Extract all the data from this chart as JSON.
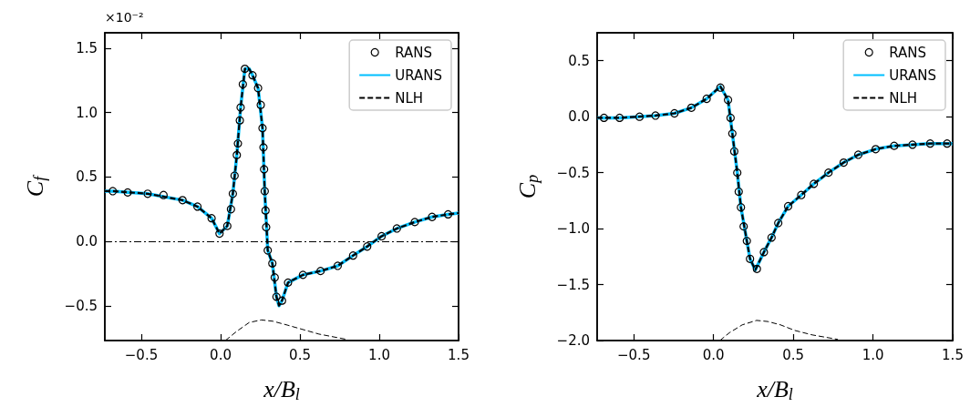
{
  "chart_data": [
    {
      "type": "line",
      "xlabel": "x/B$_{l}$",
      "ylabel": "C$_{f}$",
      "annotations": [
        "×10⁻²"
      ],
      "xlim": [
        -0.73,
        1.5
      ],
      "ylim": [
        -0.77,
        1.62
      ],
      "xticks": [
        {
          "value": -0.5,
          "label": "−0.5"
        },
        {
          "value": 0,
          "label": "0.0"
        },
        {
          "value": 0.5,
          "label": "0.5"
        },
        {
          "value": 1,
          "label": "1.0"
        },
        {
          "value": 1.5,
          "label": "1.5"
        }
      ],
      "yticks": [
        {
          "value": -0.5,
          "label": "−0.5"
        },
        {
          "value": 0,
          "label": "0.0"
        },
        {
          "value": 0.5,
          "label": "0.5"
        },
        {
          "value": 1,
          "label": "1.0"
        },
        {
          "value": 1.5,
          "label": "1.5"
        }
      ],
      "legend": "top right",
      "ref_lines": [
        {
          "axis": "y",
          "value": 0,
          "color": "#000000",
          "line_style": "dashdot"
        }
      ],
      "series": [
        {
          "name": "RANS",
          "type": "scatter",
          "marker": "circle",
          "color": "#000000",
          "x": [
            -0.68,
            -0.586,
            -0.46,
            -0.36,
            -0.24,
            -0.146,
            -0.057,
            -0.007,
            0.042,
            0.065,
            0.077,
            0.088,
            0.102,
            0.109,
            0.121,
            0.126,
            0.14,
            0.153,
            0.201,
            0.236,
            0.253,
            0.264,
            0.27,
            0.274,
            0.278,
            0.283,
            0.287,
            0.297,
            0.326,
            0.341,
            0.352,
            0.387,
            0.425,
            0.519,
            0.63,
            0.738,
            0.835,
            0.924,
            1.015,
            1.111,
            1.224,
            1.333,
            1.434
          ],
          "values": [
            0.39,
            0.38,
            0.37,
            0.36,
            0.32,
            0.27,
            0.18,
            0.06,
            0.12,
            0.25,
            0.37,
            0.51,
            0.67,
            0.76,
            0.94,
            1.04,
            1.22,
            1.34,
            1.29,
            1.19,
            1.06,
            0.88,
            0.73,
            0.56,
            0.39,
            0.24,
            0.11,
            -0.07,
            -0.17,
            -0.28,
            -0.43,
            -0.46,
            -0.32,
            -0.26,
            -0.23,
            -0.19,
            -0.11,
            -0.04,
            0.04,
            0.1,
            0.15,
            0.19,
            0.21
          ]
        },
        {
          "name": "URANS",
          "line_style": "solid",
          "color": "#00bfff",
          "x": [
            -0.73,
            -0.68,
            -0.46,
            -0.24,
            -0.146,
            -0.057,
            -0.007,
            0.042,
            0.077,
            0.102,
            0.126,
            0.153,
            0.18,
            0.201,
            0.236,
            0.264,
            0.278,
            0.297,
            0.326,
            0.352,
            0.368,
            0.387,
            0.425,
            0.519,
            0.63,
            0.738,
            0.835,
            0.924,
            1.015,
            1.111,
            1.224,
            1.333,
            1.434,
            1.5
          ],
          "values": [
            0.39,
            0.39,
            0.37,
            0.32,
            0.27,
            0.18,
            0.06,
            0.12,
            0.37,
            0.67,
            1.04,
            1.34,
            1.34,
            1.29,
            1.19,
            0.88,
            0.39,
            -0.07,
            -0.17,
            -0.43,
            -0.5,
            -0.46,
            -0.32,
            -0.26,
            -0.23,
            -0.19,
            -0.11,
            -0.04,
            0.04,
            0.1,
            0.15,
            0.19,
            0.21,
            0.22
          ]
        },
        {
          "name": "NLH",
          "line_style": "dashed",
          "color": "#000000",
          "x": [
            -0.73,
            -0.68,
            -0.46,
            -0.24,
            -0.146,
            -0.057,
            -0.007,
            0.042,
            0.077,
            0.102,
            0.126,
            0.153,
            0.18,
            0.201,
            0.236,
            0.264,
            0.278,
            0.297,
            0.326,
            0.352,
            0.368,
            0.387,
            0.425,
            0.519,
            0.63,
            0.738,
            0.835,
            0.924,
            1.015,
            1.111,
            1.224,
            1.333,
            1.434,
            1.5
          ],
          "values": [
            0.39,
            0.39,
            0.37,
            0.32,
            0.27,
            0.18,
            0.06,
            0.12,
            0.37,
            0.67,
            1.04,
            1.34,
            1.34,
            1.29,
            1.19,
            0.88,
            0.39,
            -0.07,
            -0.17,
            -0.43,
            -0.5,
            -0.46,
            -0.32,
            -0.26,
            -0.23,
            -0.19,
            -0.11,
            -0.04,
            0.04,
            0.1,
            0.15,
            0.19,
            0.21,
            0.22
          ]
        },
        {
          "line_style": "dashed",
          "color": "#000000",
          "x": [
            0.03,
            0.1,
            0.18,
            0.257,
            0.33,
            0.42,
            0.506,
            0.62,
            0.79
          ],
          "values": [
            -0.77,
            -0.7,
            -0.63,
            -0.61,
            -0.62,
            -0.65,
            -0.68,
            -0.72,
            -0.76
          ]
        }
      ]
    },
    {
      "type": "line",
      "xlabel": "x/B$_{l}$",
      "ylabel": "C$_{p}$",
      "xlim": [
        -0.73,
        1.5
      ],
      "ylim": [
        -2.0,
        0.75
      ],
      "xticks": [
        {
          "value": -0.5,
          "label": "−0.5"
        },
        {
          "value": 0,
          "label": "0.0"
        },
        {
          "value": 0.5,
          "label": "0.5"
        },
        {
          "value": 1,
          "label": "1.0"
        },
        {
          "value": 1.5,
          "label": "1.5"
        }
      ],
      "yticks": [
        {
          "value": -2,
          "label": "−2.0"
        },
        {
          "value": -1.5,
          "label": "−1.5"
        },
        {
          "value": -1,
          "label": "−1.0"
        },
        {
          "value": -0.5,
          "label": "−0.5"
        },
        {
          "value": 0,
          "label": "0.0"
        },
        {
          "value": 0.5,
          "label": "0.5"
        }
      ],
      "legend": "top right",
      "series": [
        {
          "name": "RANS",
          "type": "scatter",
          "marker": "circle",
          "color": "#000000",
          "x": [
            -0.687,
            -0.589,
            -0.464,
            -0.364,
            -0.245,
            -0.139,
            -0.043,
            0.043,
            0.091,
            0.107,
            0.118,
            0.13,
            0.149,
            0.158,
            0.172,
            0.189,
            0.209,
            0.229,
            0.272,
            0.316,
            0.364,
            0.406,
            0.468,
            0.55,
            0.629,
            0.721,
            0.816,
            0.908,
            1.017,
            1.133,
            1.248,
            1.359,
            1.465
          ],
          "values": [
            -0.01,
            -0.01,
            0,
            0.01,
            0.03,
            0.08,
            0.16,
            0.26,
            0.15,
            -0.01,
            -0.15,
            -0.31,
            -0.5,
            -0.67,
            -0.81,
            -0.98,
            -1.11,
            -1.27,
            -1.36,
            -1.21,
            -1.08,
            -0.95,
            -0.8,
            -0.7,
            -0.6,
            -0.5,
            -0.41,
            -0.34,
            -0.29,
            -0.26,
            -0.25,
            -0.24,
            -0.24
          ]
        },
        {
          "name": "URANS",
          "line_style": "solid",
          "color": "#00bfff",
          "x": [
            -0.73,
            -0.589,
            -0.364,
            -0.245,
            -0.139,
            -0.043,
            0.043,
            0.091,
            0.118,
            0.149,
            0.172,
            0.209,
            0.229,
            0.262,
            0.316,
            0.364,
            0.406,
            0.468,
            0.55,
            0.629,
            0.721,
            0.816,
            0.908,
            1.017,
            1.133,
            1.248,
            1.359,
            1.5
          ],
          "values": [
            -0.01,
            -0.01,
            0.01,
            0.03,
            0.08,
            0.16,
            0.27,
            0.15,
            -0.15,
            -0.5,
            -0.81,
            -1.11,
            -1.27,
            -1.37,
            -1.21,
            -1.08,
            -0.95,
            -0.8,
            -0.7,
            -0.6,
            -0.5,
            -0.41,
            -0.34,
            -0.29,
            -0.26,
            -0.25,
            -0.24,
            -0.24
          ]
        },
        {
          "name": "NLH",
          "line_style": "dashed",
          "color": "#000000",
          "x": [
            -0.73,
            -0.589,
            -0.364,
            -0.245,
            -0.139,
            -0.043,
            0.043,
            0.091,
            0.118,
            0.149,
            0.172,
            0.209,
            0.229,
            0.262,
            0.316,
            0.364,
            0.406,
            0.468,
            0.55,
            0.629,
            0.721,
            0.816,
            0.908,
            1.017,
            1.133,
            1.248,
            1.359,
            1.5
          ],
          "values": [
            -0.01,
            -0.01,
            0.01,
            0.03,
            0.08,
            0.16,
            0.27,
            0.15,
            -0.15,
            -0.5,
            -0.81,
            -1.11,
            -1.27,
            -1.37,
            -1.21,
            -1.08,
            -0.95,
            -0.8,
            -0.7,
            -0.6,
            -0.5,
            -0.41,
            -0.34,
            -0.29,
            -0.26,
            -0.25,
            -0.24,
            -0.24
          ]
        },
        {
          "line_style": "dashed",
          "color": "#000000",
          "x": [
            0.04,
            0.1,
            0.18,
            0.27,
            0.34,
            0.42,
            0.51,
            0.62,
            0.78
          ],
          "values": [
            -2.0,
            -1.93,
            -1.86,
            -1.82,
            -1.83,
            -1.86,
            -1.91,
            -1.95,
            -1.99
          ]
        }
      ]
    }
  ]
}
